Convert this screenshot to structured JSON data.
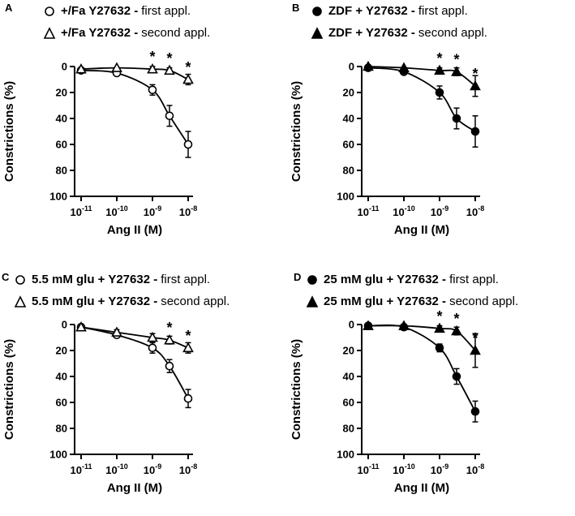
{
  "figure_bg": "#ffffff",
  "ink_color": "#000000",
  "chart_data": [
    {
      "type": "line",
      "panel_label": "A",
      "xlabel": "Ang II (M)",
      "ylabel": "Constrictions (%)",
      "x_scale": "log",
      "x": [
        1e-11,
        1e-10,
        1e-09,
        3e-09,
        1e-08
      ],
      "x_tick_base": "10",
      "x_tick_exponents": [
        -11,
        -10,
        -9,
        -8
      ],
      "y_ticks": [
        0,
        20,
        40,
        60,
        80,
        100
      ],
      "ylim": [
        0,
        100
      ],
      "y_axis_inverted": true,
      "grid": false,
      "legend_position": "top",
      "series": [
        {
          "name": "+/Fa Y27632 - first appl.",
          "legend_bold": "+/Fa Y27632 -",
          "legend_rest": "first appl.",
          "marker": "circle-open",
          "values": [
            3,
            5,
            18,
            38,
            60
          ],
          "errors": [
            2,
            2,
            4,
            8,
            10
          ]
        },
        {
          "name": "+/Fa Y27632 - second appl.",
          "legend_bold": "+/Fa Y27632 -",
          "legend_rest": "second appl.",
          "marker": "triangle-open",
          "values": [
            2,
            1,
            2,
            3,
            10
          ],
          "errors": [
            1,
            1,
            2,
            2,
            4
          ]
        }
      ],
      "significance": {
        "symbol": "*",
        "above_series": 1,
        "x": [
          1e-09,
          3e-09,
          1e-08
        ]
      }
    },
    {
      "type": "line",
      "panel_label": "B",
      "xlabel": "Ang II (M)",
      "ylabel": "Constrictions (%)",
      "x_scale": "log",
      "x": [
        1e-11,
        1e-10,
        1e-09,
        3e-09,
        1e-08
      ],
      "x_tick_base": "10",
      "x_tick_exponents": [
        -11,
        -10,
        -9,
        -8
      ],
      "y_ticks": [
        0,
        20,
        40,
        60,
        80,
        100
      ],
      "ylim": [
        0,
        100
      ],
      "y_axis_inverted": true,
      "grid": false,
      "legend_position": "top",
      "series": [
        {
          "name": "ZDF + Y27632 - first appl.",
          "legend_bold": "ZDF + Y27632 -",
          "legend_rest": "first appl.",
          "marker": "circle-filled",
          "values": [
            1,
            4,
            20,
            40,
            50
          ],
          "errors": [
            1,
            2,
            5,
            8,
            12
          ]
        },
        {
          "name": "ZDF + Y27632 - second appl.",
          "legend_bold": "ZDF + Y27632 -",
          "legend_rest": "second appl.",
          "marker": "triangle-filled",
          "values": [
            0,
            1,
            3,
            4,
            15
          ],
          "errors": [
            0,
            1,
            2,
            3,
            8
          ]
        }
      ],
      "significance": {
        "symbol": "*",
        "above_series": 1,
        "x": [
          1e-09,
          3e-09,
          1e-08
        ]
      }
    },
    {
      "type": "line",
      "panel_label": "C",
      "xlabel": "Ang II (M)",
      "ylabel": "Constrictions (%)",
      "x_scale": "log",
      "x": [
        1e-11,
        1e-10,
        1e-09,
        3e-09,
        1e-08
      ],
      "x_tick_base": "10",
      "x_tick_exponents": [
        -11,
        -10,
        -9,
        -8
      ],
      "y_ticks": [
        0,
        20,
        40,
        60,
        80,
        100
      ],
      "ylim": [
        0,
        100
      ],
      "y_axis_inverted": true,
      "grid": false,
      "legend_position": "top",
      "series": [
        {
          "name": "5.5 mM glu + Y27632 - first appl.",
          "legend_bold": "5.5 mM glu + Y27632 -",
          "legend_rest": "first appl.",
          "marker": "circle-open",
          "values": [
            2,
            8,
            18,
            32,
            57
          ],
          "errors": [
            1,
            2,
            4,
            5,
            7
          ]
        },
        {
          "name": "5.5 mM glu + Y27632 - second appl.",
          "legend_bold": "5.5 mM glu + Y27632 -",
          "legend_rest": "second appl.",
          "marker": "triangle-open",
          "values": [
            2,
            6,
            10,
            12,
            18
          ],
          "errors": [
            1,
            2,
            3,
            3,
            4
          ]
        }
      ],
      "significance": {
        "symbol": "*",
        "above_series": 1,
        "x": [
          3e-09,
          1e-08
        ]
      }
    },
    {
      "type": "line",
      "panel_label": "D",
      "xlabel": "Ang II (M)",
      "ylabel": "Constrictions (%)",
      "x_scale": "log",
      "x": [
        1e-11,
        1e-10,
        1e-09,
        3e-09,
        1e-08
      ],
      "x_tick_base": "10",
      "x_tick_exponents": [
        -11,
        -10,
        -9,
        -8
      ],
      "y_ticks": [
        0,
        20,
        40,
        60,
        80,
        100
      ],
      "ylim": [
        0,
        100
      ],
      "y_axis_inverted": true,
      "grid": false,
      "legend_position": "top",
      "series": [
        {
          "name": "25 mM glu + Y27632 - first appl.",
          "legend_bold": "25 mM glu + Y27632 -",
          "legend_rest": "first appl.",
          "marker": "circle-filled",
          "values": [
            1,
            2,
            18,
            40,
            67
          ],
          "errors": [
            1,
            1,
            3,
            6,
            8
          ]
        },
        {
          "name": "25 mM glu + Y27632 - second appl.",
          "legend_bold": "25 mM glu + Y27632 -",
          "legend_rest": "second appl.",
          "marker": "triangle-filled",
          "values": [
            1,
            1,
            3,
            5,
            20
          ],
          "errors": [
            1,
            1,
            2,
            3,
            13
          ]
        }
      ],
      "significance": {
        "symbol": "*",
        "above_series": 1,
        "x": [
          1e-09,
          3e-09,
          1e-08
        ]
      }
    }
  ]
}
